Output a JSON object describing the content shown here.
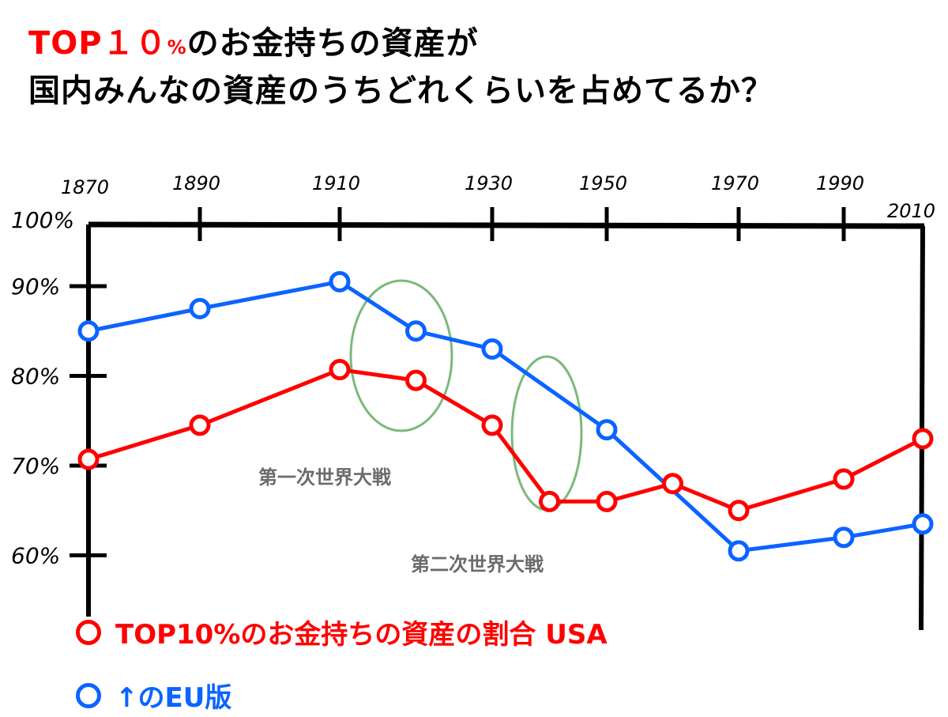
{
  "title": {
    "line1_red": "TOP１０",
    "line1_pct": "%",
    "line1_rest": "のお金持ちの資産が",
    "line2": "国内みんなの資産のうちどれくらいを占めてるか？"
  },
  "chart_data": {
    "type": "line",
    "title": "TOP10%のお金持ちの資産が国内みんなの資産のうちどれくらいを占めてるか？",
    "x_ticks": [
      "1870",
      "1890",
      "1910",
      "1930",
      "1950",
      "1970",
      "1990",
      "2010"
    ],
    "y_ticks": [
      "100%",
      "90%",
      "80%",
      "70%",
      "60%"
    ],
    "ylim": [
      55,
      100
    ],
    "series": [
      {
        "name": "TOP10%のお金持ちの資産の割合 USA",
        "color": "#ff0000",
        "x": [
          1870,
          1890,
          1910,
          1920,
          1930,
          1940,
          1950,
          1960,
          1970,
          1990,
          2010
        ],
        "y": [
          70.7,
          74.5,
          80.7,
          79.5,
          74.5,
          66,
          66,
          68,
          65,
          68.5,
          73
        ]
      },
      {
        "name": "↑のEU版",
        "color": "#0a64ff",
        "x": [
          1870,
          1890,
          1910,
          1920,
          1930,
          1950,
          1970,
          1990,
          2010
        ],
        "y": [
          85,
          87.5,
          90.5,
          85,
          83,
          74,
          60.5,
          62,
          63.5
        ]
      }
    ],
    "annotations": [
      "第一次世界大戦",
      "第二次世界大戦"
    ],
    "legend_position": "bottom-left"
  }
}
